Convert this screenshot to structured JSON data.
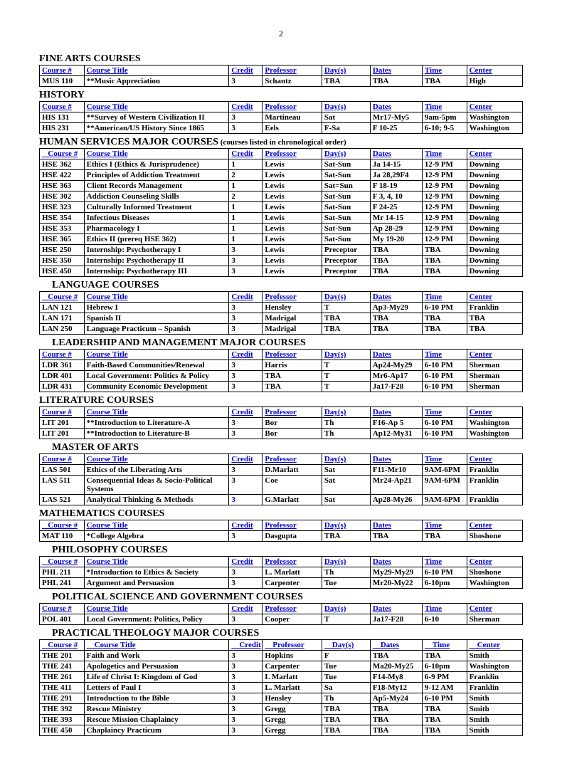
{
  "page_number": "2",
  "headers": {
    "course": "Course #",
    "title": "Course Title",
    "credit": "Credit",
    "professor": "Professor",
    "days": "Day(s)",
    "dates": "Dates",
    "time": "Time",
    "center": "Center"
  },
  "sections": [
    {
      "title": "FINE ARTS COURSES",
      "rows": [
        [
          "MUS 110",
          "**Music Appreciation",
          "3",
          "Schantz",
          "TBA",
          "TBA",
          "TBA",
          "High"
        ]
      ]
    },
    {
      "title": "HISTORY",
      "rows": [
        [
          "HIS 131",
          "**Survey of Western Civilization II",
          "3",
          "Martineau",
          "Sat",
          "Mr17-My5",
          "9am-5pm",
          "Washington"
        ],
        [
          "HIS 231",
          "**American/US History Since 1865",
          "3",
          "Eels",
          "F-Sa",
          "F 10-25",
          "6-10; 9-5",
          "Washington"
        ]
      ]
    },
    {
      "title": "HUMAN SERVICES MAJOR COURSES",
      "subnote": "(courses listed in chronological order)",
      "indent_header": true,
      "rows": [
        [
          "HSE 362",
          "Ethics  I (Ethics & Jurisprudence)",
          "1",
          "Lewis",
          "Sat-Sun",
          "Ja 14-15",
          "12-9 PM",
          "Downing"
        ],
        [
          "HSE 422",
          "Principles of Addiction Treatment",
          "2",
          "Lewis",
          "Sat-Sun",
          "Ja 28,29F4",
          "12-9 PM",
          "Downing"
        ],
        [
          "HSE 363",
          "Client Records Management",
          "1",
          "Lewis",
          "Sat=Sun",
          "F 18-19",
          "12-9 PM",
          "Downing"
        ],
        [
          "HSE 302",
          "Addiction Counseling Skills",
          "2",
          "Lewis",
          "Sat-Sun",
          "F 3, 4, 10",
          "12-9 PM",
          "Downing"
        ],
        [
          "HSE 323",
          "Culturally Informed Treatment",
          "1",
          "Lewis",
          "Sat-Sun",
          "F 24-25",
          "12-9 PM",
          "Downing"
        ],
        [
          "HSE 354",
          "Infectious Diseases",
          "1",
          "Lewis",
          "Sat-Sun",
          "Mr 14-15",
          "12-9 PM",
          "Downing"
        ],
        [
          "HSE 353",
          "Pharmacology I",
          "1",
          "Lewis",
          "Sat-Sun",
          "Ap 28-29",
          "12-9 PM",
          "Downing"
        ],
        [
          "HSE 365",
          "Ethics II (prereq HSE 362)",
          "1",
          "Lewis",
          "Sat-Sun",
          "My 19-20",
          "12-9 PM",
          "Downing"
        ],
        [
          "HSE 250",
          "Internship: Psychotherapy I",
          "3",
          "Lewis",
          "Preceptor",
          "TBA",
          "TBA",
          "Downing"
        ],
        [
          "HSE 350",
          "Internship: Psychotherapy II",
          "3",
          "Lewis",
          "Preceptor",
          "TBA",
          "TBA",
          "Downing"
        ],
        [
          "HSE 450",
          "Internship: Psychotherapy III",
          "3",
          "Lewis",
          "Preceptor",
          "TBA",
          "TBA",
          "Downing"
        ]
      ]
    },
    {
      "title": "LANGUAGE COURSES",
      "indent_title": true,
      "indent_header": true,
      "rows": [
        [
          "LAN 121",
          "Hebrew I",
          "3",
          "Hensley",
          "T",
          "Ap3-My29",
          "6-10 PM",
          "Franklin"
        ],
        [
          "LAN 171",
          "Spanish II",
          "3",
          "Madrigal",
          "TBA",
          "TBA",
          "TBA",
          "TBA"
        ],
        [
          "LAN 250",
          "Language Practicum – Spanish",
          "3",
          "Madrigal",
          "TBA",
          "TBA",
          "TBA",
          "TBA"
        ]
      ]
    },
    {
      "title": "LEADERSHIP AND MANAGEMENT MAJOR COURSES",
      "indent_title": true,
      "rows": [
        [
          "LDR 361",
          "Faith-Based Communities/Renewal",
          "3",
          "Harris",
          "T",
          "Ap24-My29",
          "6-10 PM",
          "Sherman"
        ],
        [
          "LDR 401",
          "Local Government: Politics & Policy",
          "3",
          "TBA",
          "T",
          "Mr6-Ap17",
          "6-10 PM",
          "Sherman"
        ],
        [
          "LDR 431",
          "Community Economic Development",
          "3",
          "TBA",
          "T",
          "Ja17-F28",
          "6-10 PM",
          "Sherman"
        ]
      ]
    },
    {
      "title": "LITERATURE COURSES",
      "rows": [
        [
          "LIT 201",
          "**Introduction to Literature-A",
          "3",
          "Bor",
          "Th",
          "F16-Ap 5",
          "6-10 PM",
          "Washington"
        ],
        [
          "LIT 201",
          "**Introduction to Literature-B",
          "3",
          "Bor",
          "Th",
          "Ap12-My31",
          "6-10 PM",
          "Washington"
        ]
      ]
    },
    {
      "title": "MASTER OF ARTS",
      "indent_title": true,
      "rows": [
        [
          "LAS 501",
          "Ethics of the Liberating Arts",
          "3",
          "D.Marlatt",
          "Sat",
          "F11-Mr10",
          "9AM-6PM",
          "Franklin"
        ],
        [
          "LAS 511",
          "Consequential Ideas & Socio-Political Systems",
          "3",
          "Coe",
          "Sat",
          "Mr24-Ap21",
          "9AM-6PM",
          "Franklin"
        ],
        [
          "LAS 521",
          "Analytical Thinking & Methods",
          {
            "v": "3",
            "blue": true
          },
          "G.Marlatt",
          "Sat",
          "Ap28-My26",
          "9AM-6PM",
          "Franklin"
        ]
      ]
    },
    {
      "title": "MATHEMATICS COURSES",
      "indent_header": true,
      "rows": [
        [
          "MAT 110",
          "*College Algebra",
          "3",
          "Dasgupta",
          "TBA",
          "TBA",
          "TBA",
          "Shoshone"
        ]
      ]
    },
    {
      "title": "PHILOSOPHY COURSES",
      "indent_title": true,
      "indent_header": true,
      "rows": [
        [
          "PHL 211",
          "*Introduction to Ethics & Society",
          "3",
          "L. Marlatt",
          "Th",
          "My29-My29",
          "6-10 PM",
          "Shoshone"
        ],
        [
          "PHL 241",
          "Argument and Persuasion",
          "3",
          "Carpenter",
          "Tue",
          "Mr20-My22",
          "6-10pm",
          "Washington"
        ]
      ]
    },
    {
      "title": "POLITICAL SCIENCE AND GOVERNMENT COURSES",
      "indent_title": true,
      "rows": [
        [
          "POL 401",
          "Local Government: Politics, Policy",
          "3",
          "Cooper",
          "T",
          "Ja17-F28",
          "6-10",
          "Sherman"
        ]
      ]
    },
    {
      "title": "PRACTICAL THEOLOGY MAJOR COURSES",
      "indent_title": true,
      "indent_header": true,
      "header_shift": true,
      "rows": [
        [
          "THE 201",
          "Faith and Work",
          "3",
          "Hopkins",
          "F",
          "TBA",
          "TBA",
          "Smith"
        ],
        [
          "THE 241",
          "Apologetics and Persuasion",
          "3",
          "Carpenter",
          "Tue",
          "Ma20-My25",
          "6-10pm",
          "Washington"
        ],
        [
          "THE 261",
          "Life of Christ I: Kingdom of God",
          "3",
          "L Marlatt",
          "Tue",
          "F14-My8",
          "6-9 PM",
          "Franklin"
        ],
        [
          "THE 411",
          "Letters of Paul I",
          "3",
          "L. Marlatt",
          "Sa",
          "F18-My12",
          "9-12 AM",
          "Franklin"
        ],
        [
          "THE 291",
          "Introduction to the Bible",
          "3",
          "Hensley",
          "Th",
          "Ap5-My24",
          "6-10 PM",
          "Smith"
        ],
        [
          "THE 392",
          "Rescue Ministry",
          "3",
          "Gregg",
          "TBA",
          "TBA",
          "TBA",
          "Smith"
        ],
        [
          "THE 393",
          "Rescue Mission Chaplaincy",
          "3",
          "Gregg",
          "TBA",
          "TBA",
          "TBA",
          "Smith"
        ],
        [
          "THE 450",
          "Chaplaincy Practicum",
          "3",
          "Gregg",
          "TBA",
          "TBA",
          "TBA",
          "Smith"
        ]
      ]
    }
  ]
}
